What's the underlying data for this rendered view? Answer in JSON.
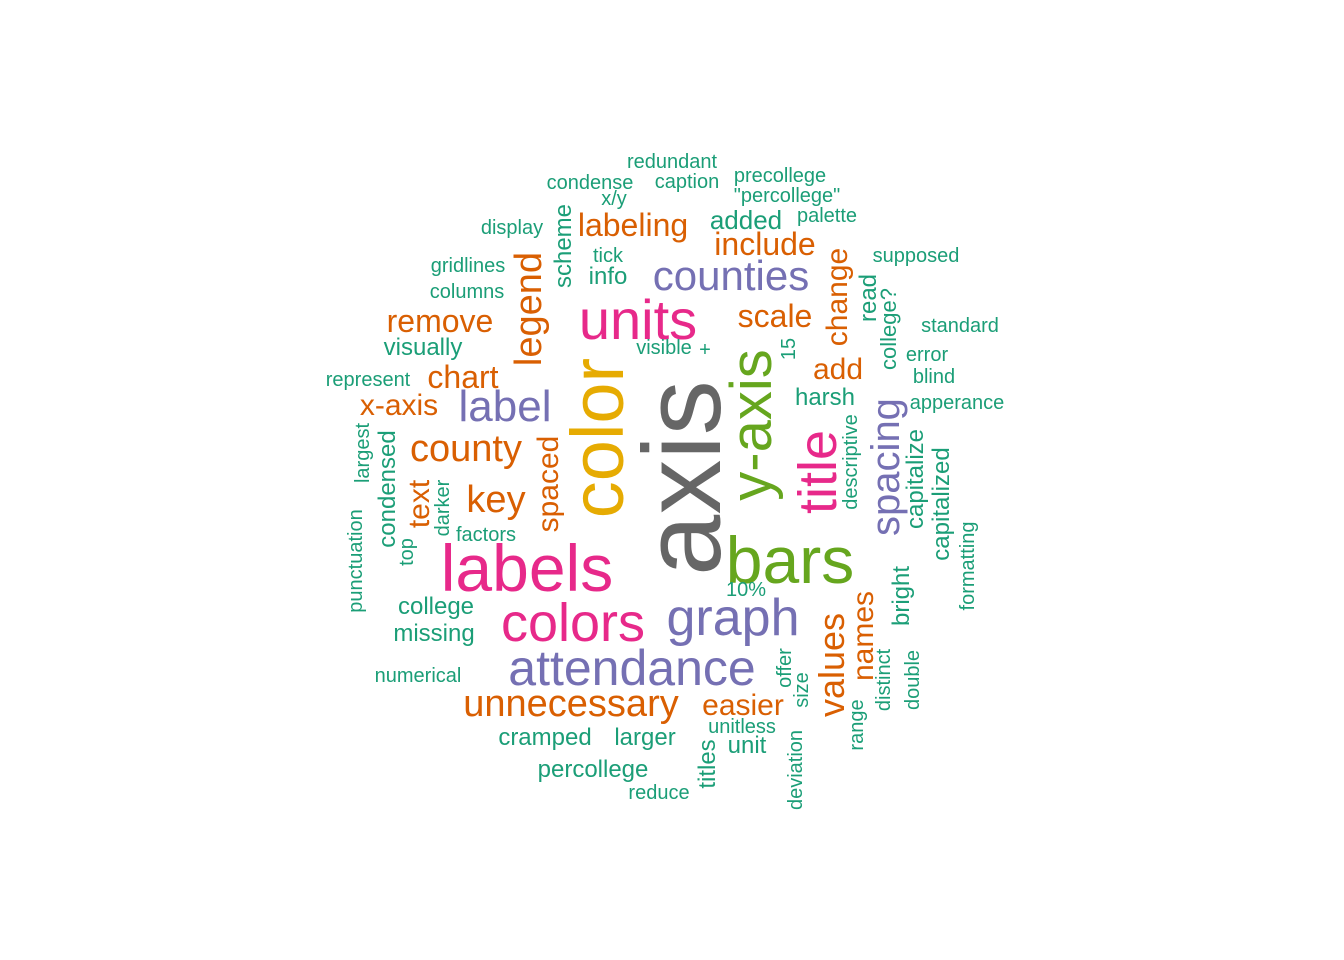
{
  "palette": {
    "green": "#1b9e77",
    "orange": "#d95f02",
    "purple": "#7570b3",
    "magenta": "#e7298a",
    "lime": "#66a61e",
    "gold": "#e6ab02",
    "gray": "#666666"
  },
  "words": [
    {
      "text": "axis",
      "color": "gray"
    },
    {
      "text": "color",
      "color": "gold"
    },
    {
      "text": "y-axis",
      "color": "lime"
    },
    {
      "text": "bars",
      "color": "lime"
    },
    {
      "text": "labels",
      "color": "magenta"
    },
    {
      "text": "units",
      "color": "magenta"
    },
    {
      "text": "title",
      "color": "magenta"
    },
    {
      "text": "colors",
      "color": "magenta"
    },
    {
      "text": "attendance",
      "color": "purple"
    },
    {
      "text": "graph",
      "color": "purple"
    },
    {
      "text": "counties",
      "color": "purple"
    },
    {
      "text": "label",
      "color": "purple"
    },
    {
      "text": "spacing",
      "color": "purple"
    },
    {
      "text": "unnecessary",
      "color": "orange"
    },
    {
      "text": "county",
      "color": "orange"
    },
    {
      "text": "key",
      "color": "orange"
    },
    {
      "text": "legend",
      "color": "orange"
    },
    {
      "text": "values",
      "color": "orange"
    },
    {
      "text": "names",
      "color": "orange"
    },
    {
      "text": "labeling",
      "color": "orange"
    },
    {
      "text": "include",
      "color": "orange"
    },
    {
      "text": "scale",
      "color": "orange"
    },
    {
      "text": "remove",
      "color": "orange"
    },
    {
      "text": "chart",
      "color": "orange"
    },
    {
      "text": "x-axis",
      "color": "orange"
    },
    {
      "text": "add",
      "color": "orange"
    },
    {
      "text": "easier",
      "color": "orange"
    },
    {
      "text": "change",
      "color": "orange"
    },
    {
      "text": "text",
      "color": "orange"
    },
    {
      "text": "spaced",
      "color": "orange"
    },
    {
      "text": "added",
      "color": "green"
    },
    {
      "text": "scheme",
      "color": "green"
    },
    {
      "text": "visually",
      "color": "green"
    },
    {
      "text": "harsh",
      "color": "green"
    },
    {
      "text": "read",
      "color": "green"
    },
    {
      "text": "college?",
      "color": "green"
    },
    {
      "text": "capitalize",
      "color": "green"
    },
    {
      "text": "capitalized",
      "color": "green"
    },
    {
      "text": "bright",
      "color": "green"
    },
    {
      "text": "condensed",
      "color": "green"
    },
    {
      "text": "college",
      "color": "green"
    },
    {
      "text": "missing",
      "color": "green"
    },
    {
      "text": "cramped",
      "color": "green"
    },
    {
      "text": "larger",
      "color": "green"
    },
    {
      "text": "percollege",
      "color": "green"
    },
    {
      "text": "unit",
      "color": "green"
    },
    {
      "text": "titles",
      "color": "green"
    },
    {
      "text": "info",
      "color": "green"
    },
    {
      "text": "redundant",
      "color": "green"
    },
    {
      "text": "precollege",
      "color": "green"
    },
    {
      "text": "condense",
      "color": "green"
    },
    {
      "text": "caption",
      "color": "green"
    },
    {
      "text": "\"percollege\"",
      "color": "green"
    },
    {
      "text": "x/y",
      "color": "green"
    },
    {
      "text": "palette",
      "color": "green"
    },
    {
      "text": "display",
      "color": "green"
    },
    {
      "text": "tick",
      "color": "green"
    },
    {
      "text": "supposed",
      "color": "green"
    },
    {
      "text": "gridlines",
      "color": "green"
    },
    {
      "text": "columns",
      "color": "green"
    },
    {
      "text": "standard",
      "color": "green"
    },
    {
      "text": "visible",
      "color": "green"
    },
    {
      "text": "+",
      "color": "green"
    },
    {
      "text": "15",
      "color": "green"
    },
    {
      "text": "error",
      "color": "green"
    },
    {
      "text": "represent",
      "color": "green"
    },
    {
      "text": "blind",
      "color": "green"
    },
    {
      "text": "apperance",
      "color": "green"
    },
    {
      "text": "largest",
      "color": "green"
    },
    {
      "text": "descriptive",
      "color": "green"
    },
    {
      "text": "darker",
      "color": "green"
    },
    {
      "text": "factors",
      "color": "green"
    },
    {
      "text": "top",
      "color": "green"
    },
    {
      "text": "punctuation",
      "color": "green"
    },
    {
      "text": "formatting",
      "color": "green"
    },
    {
      "text": "10%",
      "color": "green"
    },
    {
      "text": "numerical",
      "color": "green"
    },
    {
      "text": "offer",
      "color": "green"
    },
    {
      "text": "size",
      "color": "green"
    },
    {
      "text": "distinct",
      "color": "green"
    },
    {
      "text": "double",
      "color": "green"
    },
    {
      "text": "range",
      "color": "green"
    },
    {
      "text": "unitless",
      "color": "green"
    },
    {
      "text": "deviation",
      "color": "green"
    },
    {
      "text": "reduce",
      "color": "green"
    }
  ]
}
